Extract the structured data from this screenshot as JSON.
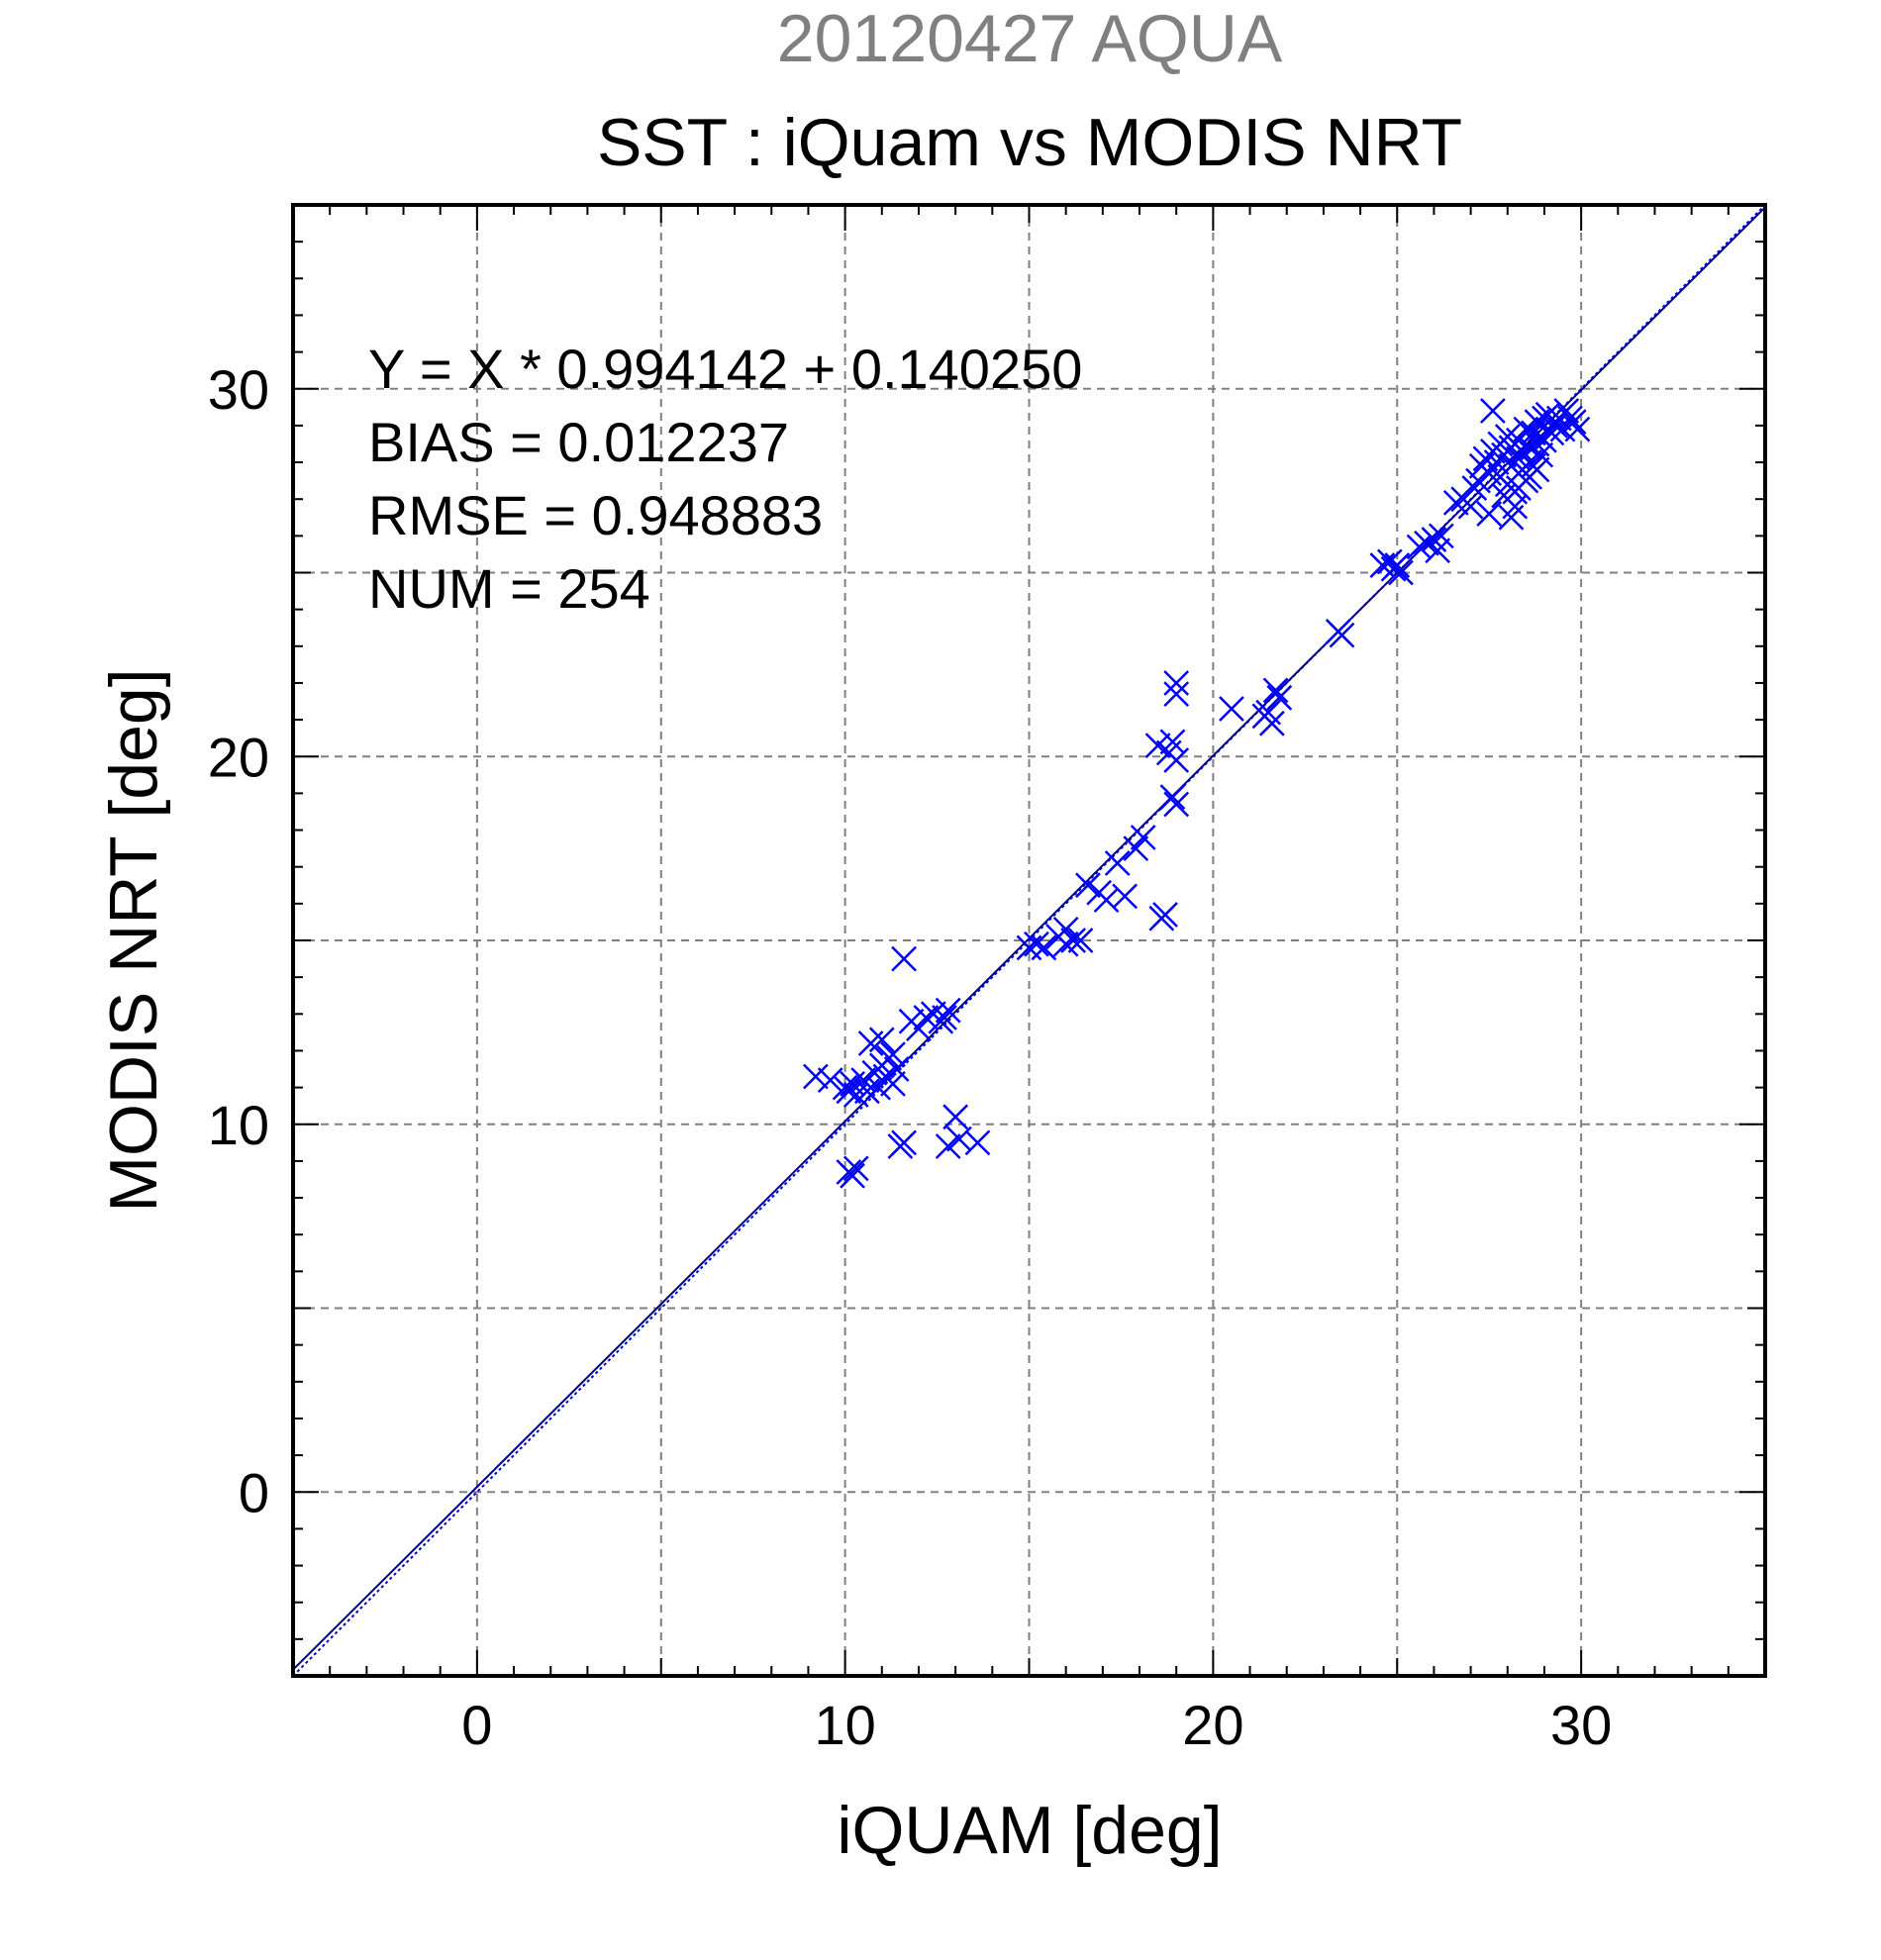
{
  "chart_data": {
    "type": "scatter",
    "supertitle": "20120427 AQUA",
    "title": "SST : iQuam vs MODIS NRT",
    "xlabel": "iQUAM [deg]",
    "ylabel": "MODIS NRT [deg]",
    "xlim": [
      -5,
      35
    ],
    "ylim": [
      -5,
      35
    ],
    "xticks": [
      0,
      10,
      20,
      30
    ],
    "yticks": [
      0,
      10,
      20,
      30
    ],
    "grid": true,
    "stats": [
      "Y = X * 0.994142 + 0.140250",
      "BIAS = 0.012237",
      "RMSE = 0.948883",
      "NUM = 254"
    ],
    "fit": {
      "slope": 0.994142,
      "intercept": 0.14025
    },
    "colors": {
      "supertitle": "#808080",
      "marker": "#0000ff",
      "fit_line": "#00008b",
      "grid": "#808080"
    },
    "points": [
      [
        9.2,
        11.3
      ],
      [
        9.6,
        11.2
      ],
      [
        10.0,
        11.0
      ],
      [
        10.1,
        10.9
      ],
      [
        10.2,
        11.1
      ],
      [
        10.3,
        10.8
      ],
      [
        10.5,
        11.2
      ],
      [
        10.6,
        10.9
      ],
      [
        10.8,
        11.4
      ],
      [
        10.9,
        11.0
      ],
      [
        11.0,
        11.6
      ],
      [
        11.1,
        11.3
      ],
      [
        11.2,
        11.8
      ],
      [
        11.3,
        11.1
      ],
      [
        11.4,
        11.5
      ],
      [
        10.7,
        12.2
      ],
      [
        11.0,
        12.3
      ],
      [
        11.3,
        11.9
      ],
      [
        11.6,
        14.5
      ],
      [
        11.8,
        12.8
      ],
      [
        12.0,
        12.6
      ],
      [
        12.2,
        12.9
      ],
      [
        12.4,
        13.0
      ],
      [
        12.6,
        12.8
      ],
      [
        12.8,
        13.1
      ],
      [
        12.7,
        12.9
      ],
      [
        10.1,
        8.7
      ],
      [
        10.2,
        8.6
      ],
      [
        10.3,
        8.8
      ],
      [
        11.5,
        9.4
      ],
      [
        11.6,
        9.5
      ],
      [
        12.8,
        9.4
      ],
      [
        13.0,
        10.2
      ],
      [
        13.1,
        9.6
      ],
      [
        13.6,
        9.5
      ],
      [
        15.0,
        14.8
      ],
      [
        15.2,
        14.9
      ],
      [
        15.4,
        14.8
      ],
      [
        15.8,
        15.1
      ],
      [
        16.0,
        15.3
      ],
      [
        16.2,
        15.0
      ],
      [
        16.4,
        15.0
      ],
      [
        16.0,
        14.9
      ],
      [
        16.6,
        16.5
      ],
      [
        16.9,
        16.3
      ],
      [
        17.1,
        16.1
      ],
      [
        17.4,
        17.1
      ],
      [
        17.6,
        16.2
      ],
      [
        17.9,
        17.5
      ],
      [
        18.1,
        17.8
      ],
      [
        18.5,
        20.3
      ],
      [
        18.8,
        20.1
      ],
      [
        18.9,
        20.4
      ],
      [
        19.0,
        19.9
      ],
      [
        18.6,
        15.6
      ],
      [
        18.7,
        15.7
      ],
      [
        18.9,
        18.9
      ],
      [
        19.0,
        18.7
      ],
      [
        19.0,
        22.0
      ],
      [
        19.0,
        21.7
      ],
      [
        20.5,
        21.3
      ],
      [
        21.4,
        21.1
      ],
      [
        21.5,
        21.2
      ],
      [
        21.6,
        20.9
      ],
      [
        21.7,
        21.8
      ],
      [
        21.8,
        21.6
      ],
      [
        23.4,
        23.4
      ],
      [
        23.5,
        23.3
      ],
      [
        24.6,
        25.2
      ],
      [
        24.8,
        25.3
      ],
      [
        24.9,
        25.1
      ],
      [
        25.0,
        25.2
      ],
      [
        25.1,
        25.0
      ],
      [
        25.6,
        25.7
      ],
      [
        25.8,
        25.8
      ],
      [
        26.0,
        25.9
      ],
      [
        26.1,
        25.6
      ],
      [
        26.2,
        26.0
      ],
      [
        26.6,
        26.9
      ],
      [
        26.8,
        27.0
      ],
      [
        27.0,
        26.8
      ],
      [
        27.1,
        27.3
      ],
      [
        27.2,
        27.5
      ],
      [
        27.3,
        27.9
      ],
      [
        27.4,
        28.1
      ],
      [
        27.5,
        27.7
      ],
      [
        27.6,
        28.3
      ],
      [
        27.6,
        29.4
      ],
      [
        27.7,
        28.0
      ],
      [
        27.8,
        27.6
      ],
      [
        27.8,
        28.5
      ],
      [
        27.9,
        28.2
      ],
      [
        28.0,
        27.4
      ],
      [
        28.0,
        28.7
      ],
      [
        28.1,
        27.9
      ],
      [
        28.1,
        28.4
      ],
      [
        28.2,
        26.8
      ],
      [
        28.2,
        27.2
      ],
      [
        28.3,
        28.1
      ],
      [
        28.3,
        28.6
      ],
      [
        28.4,
        27.8
      ],
      [
        28.4,
        28.3
      ],
      [
        28.5,
        28.9
      ],
      [
        28.5,
        27.5
      ],
      [
        28.6,
        28.0
      ],
      [
        28.6,
        28.4
      ],
      [
        28.7,
        28.8
      ],
      [
        28.7,
        27.9
      ],
      [
        28.8,
        28.5
      ],
      [
        28.8,
        29.1
      ],
      [
        28.9,
        28.2
      ],
      [
        28.9,
        28.7
      ],
      [
        29.0,
        29.2
      ],
      [
        29.0,
        28.6
      ],
      [
        29.1,
        28.9
      ],
      [
        29.1,
        29.3
      ],
      [
        29.2,
        28.8
      ],
      [
        29.3,
        29.0
      ],
      [
        29.4,
        29.2
      ],
      [
        29.5,
        28.9
      ],
      [
        29.6,
        29.4
      ],
      [
        29.7,
        29.2
      ],
      [
        29.8,
        29.1
      ],
      [
        29.9,
        28.9
      ],
      [
        28.3,
        27.3
      ],
      [
        28.6,
        27.6
      ],
      [
        27.9,
        27.1
      ],
      [
        28.1,
        26.5
      ],
      [
        27.5,
        26.6
      ],
      [
        28.8,
        27.8
      ]
    ]
  }
}
